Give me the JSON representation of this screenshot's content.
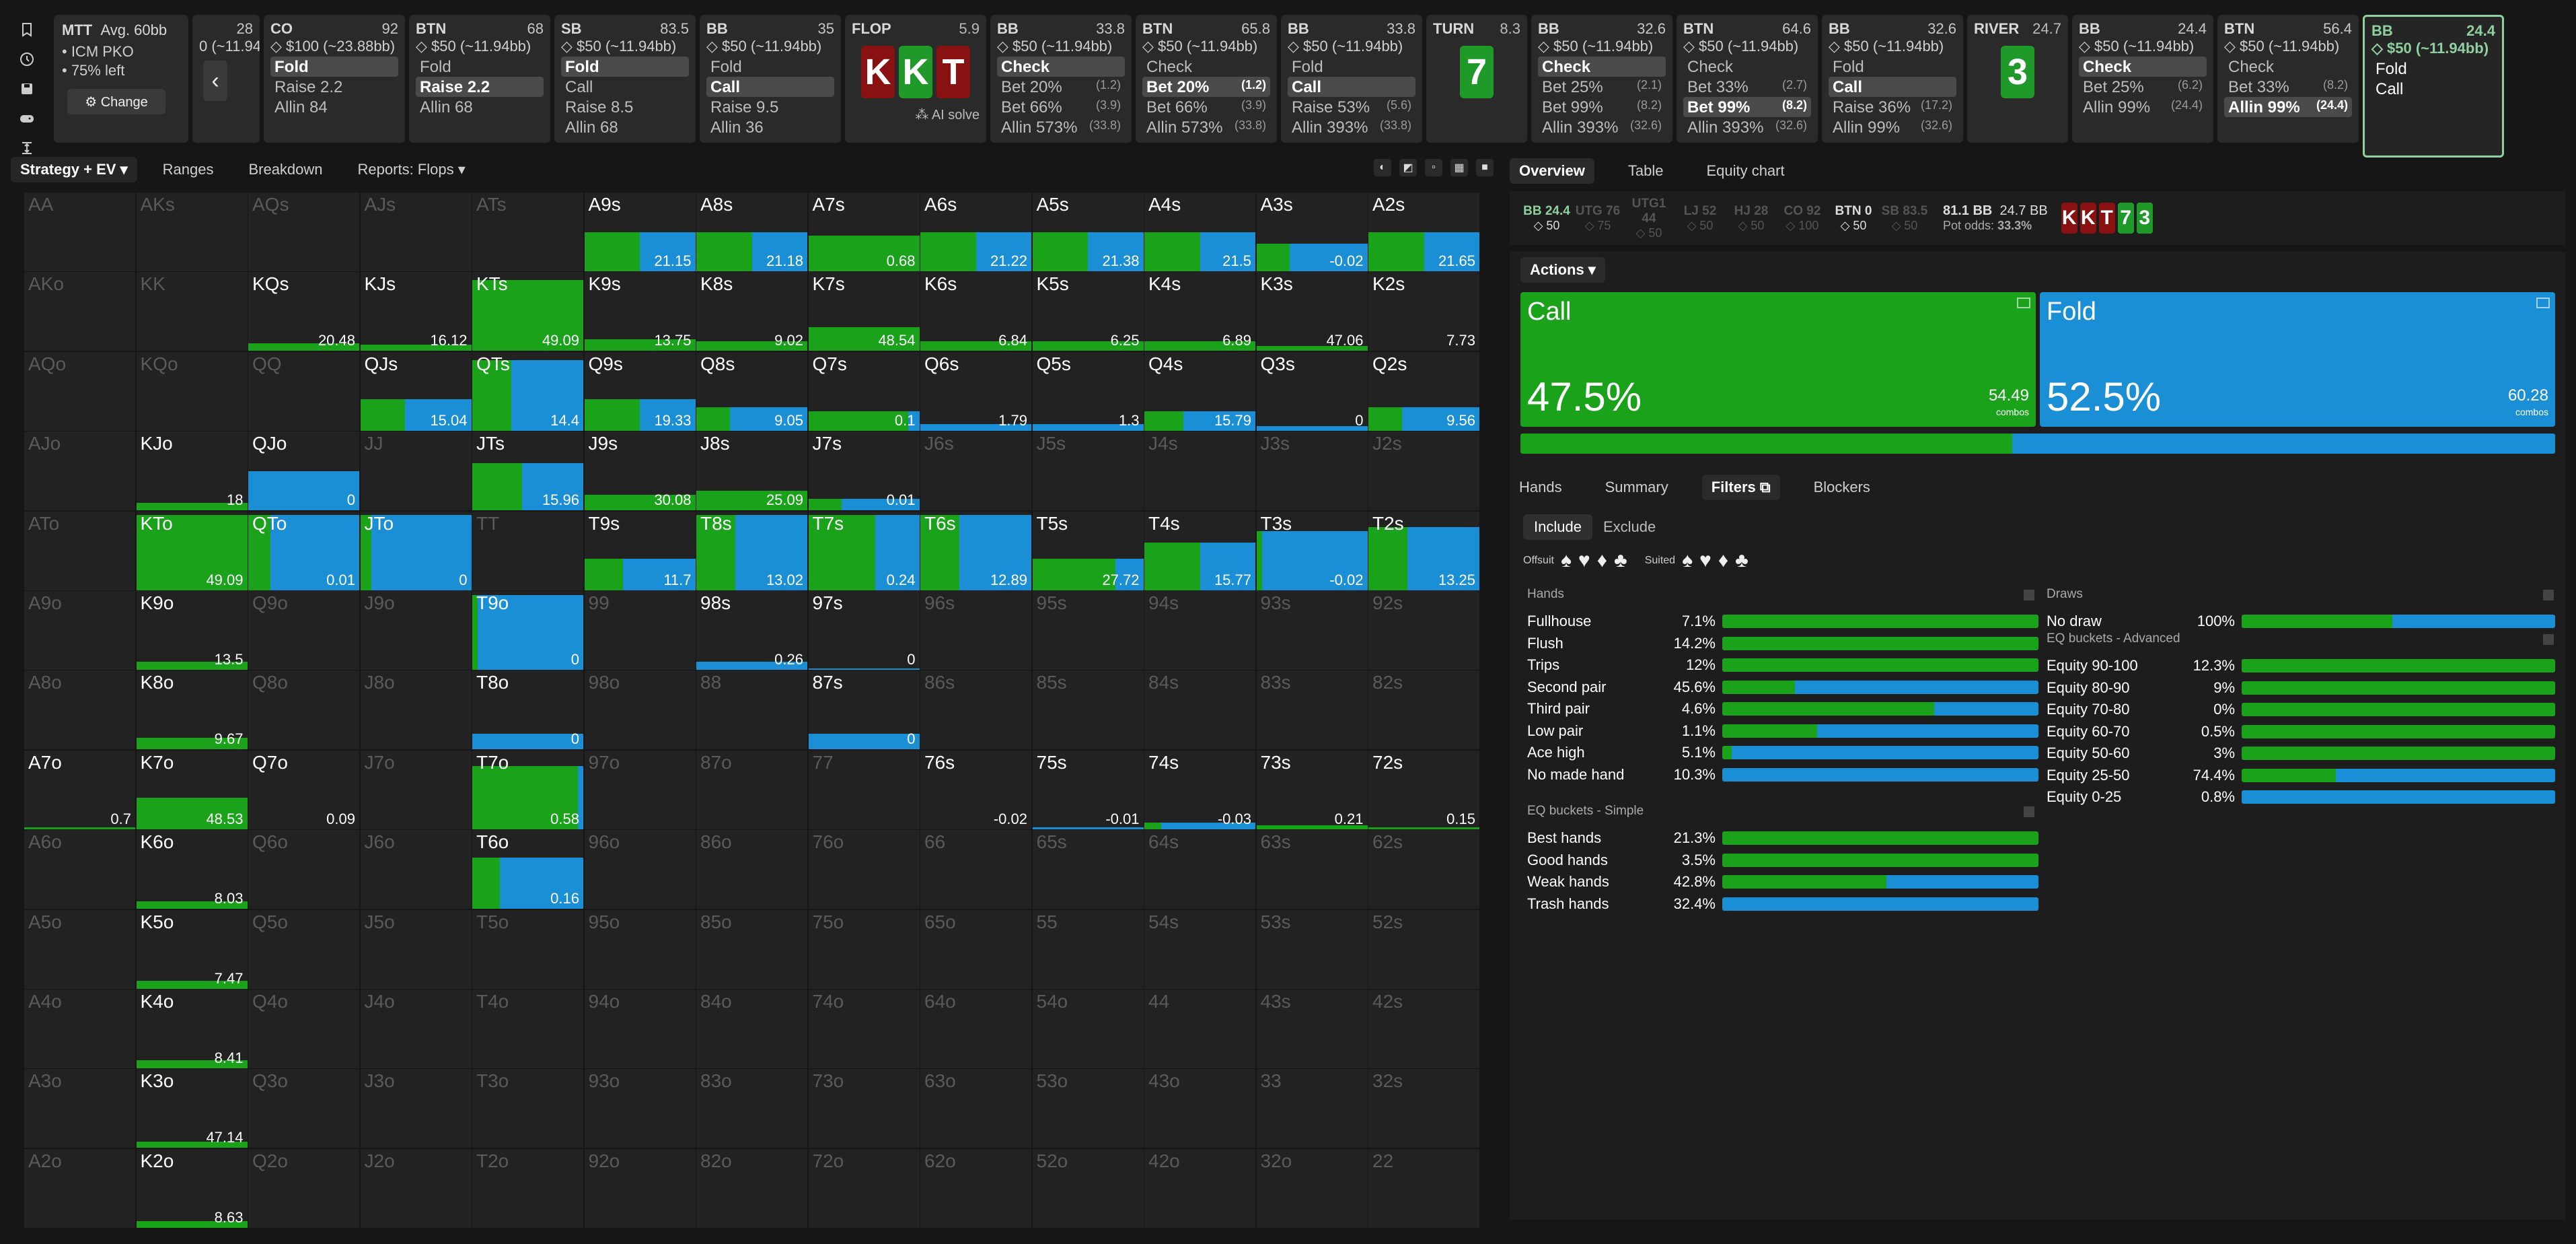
{
  "app": {
    "accent_green": "#1aa21a",
    "accent_blue": "#1b8fd6"
  },
  "rail_icons": [
    "bookmark-icon",
    "history-icon",
    "save-icon",
    "gamepad-icon",
    "compress-icon"
  ],
  "mtt": {
    "title": "MTT",
    "avg": "Avg. 60bb",
    "line1": "• ICM PKO",
    "line2": "• 75% left",
    "change": "⚙ Change"
  },
  "history": [
    {
      "pos": "",
      "num": "28",
      "stack": "0 (~11.94bb)",
      "actions": [
        {
          "l": "",
          "s": ""
        }
      ],
      "partial": true
    },
    {
      "pos": "CO",
      "num": "92",
      "stack": "◇ $100 (~23.88bb)",
      "actions": [
        {
          "l": "Fold",
          "s": "",
          "sel": true
        },
        {
          "l": "Raise 2.2",
          "s": ""
        },
        {
          "l": "Allin 84",
          "s": ""
        }
      ]
    },
    {
      "pos": "BTN",
      "num": "68",
      "stack": "◇ $50 (~11.94bb)",
      "actions": [
        {
          "l": "Fold",
          "s": ""
        },
        {
          "l": "Raise 2.2",
          "s": "",
          "sel": true
        },
        {
          "l": "Allin 68",
          "s": ""
        }
      ]
    },
    {
      "pos": "SB",
      "num": "83.5",
      "stack": "◇ $50 (~11.94bb)",
      "actions": [
        {
          "l": "Fold",
          "s": "",
          "sel": true
        },
        {
          "l": "Call",
          "s": ""
        },
        {
          "l": "Raise 8.5",
          "s": ""
        },
        {
          "l": "Allin 68",
          "s": ""
        }
      ]
    },
    {
      "pos": "BB",
      "num": "35",
      "stack": "◇ $50 (~11.94bb)",
      "actions": [
        {
          "l": "Fold",
          "s": ""
        },
        {
          "l": "Call",
          "s": "",
          "sel": true
        },
        {
          "l": "Raise 9.5",
          "s": ""
        },
        {
          "l": "Allin 36",
          "s": ""
        }
      ]
    },
    {
      "board": true,
      "street": "FLOP",
      "num": "5.9",
      "cards": [
        {
          "r": "K",
          "c": "red"
        },
        {
          "r": "K",
          "c": "green"
        },
        {
          "r": "T",
          "c": "red"
        }
      ],
      "ai": "⁂ AI solve"
    },
    {
      "pos": "BB",
      "num": "33.8",
      "stack": "◇ $50 (~11.94bb)",
      "actions": [
        {
          "l": "Check",
          "s": "",
          "sel": true
        },
        {
          "l": "Bet 20%",
          "s": "(1.2)"
        },
        {
          "l": "Bet 66%",
          "s": "(3.9)"
        },
        {
          "l": "Allin 573%",
          "s": "(33.8)"
        }
      ]
    },
    {
      "pos": "BTN",
      "num": "65.8",
      "stack": "◇ $50 (~11.94bb)",
      "actions": [
        {
          "l": "Check",
          "s": ""
        },
        {
          "l": "Bet 20%",
          "s": "(1.2)",
          "sel": true
        },
        {
          "l": "Bet 66%",
          "s": "(3.9)"
        },
        {
          "l": "Allin 573%",
          "s": "(33.8)"
        }
      ]
    },
    {
      "pos": "BB",
      "num": "33.8",
      "stack": "◇ $50 (~11.94bb)",
      "actions": [
        {
          "l": "Fold",
          "s": ""
        },
        {
          "l": "Call",
          "s": "",
          "sel": true
        },
        {
          "l": "Raise 53%",
          "s": "(5.6)"
        },
        {
          "l": "Allin 393%",
          "s": "(33.8)"
        }
      ]
    },
    {
      "board": true,
      "street": "TURN",
      "num": "8.3",
      "cards": [
        {
          "r": "7",
          "c": "green"
        }
      ]
    },
    {
      "pos": "BB",
      "num": "32.6",
      "stack": "◇ $50 (~11.94bb)",
      "actions": [
        {
          "l": "Check",
          "s": "",
          "sel": true
        },
        {
          "l": "Bet 25%",
          "s": "(2.1)"
        },
        {
          "l": "Bet 99%",
          "s": "(8.2)"
        },
        {
          "l": "Allin 393%",
          "s": "(32.6)"
        }
      ]
    },
    {
      "pos": "BTN",
      "num": "64.6",
      "stack": "◇ $50 (~11.94bb)",
      "actions": [
        {
          "l": "Check",
          "s": ""
        },
        {
          "l": "Bet 33%",
          "s": "(2.7)"
        },
        {
          "l": "Bet 99%",
          "s": "(8.2)",
          "sel": true
        },
        {
          "l": "Allin 393%",
          "s": "(32.6)"
        }
      ]
    },
    {
      "pos": "BB",
      "num": "32.6",
      "stack": "◇ $50 (~11.94bb)",
      "actions": [
        {
          "l": "Fold",
          "s": ""
        },
        {
          "l": "Call",
          "s": "",
          "sel": true
        },
        {
          "l": "Raise 36%",
          "s": "(17.2)"
        },
        {
          "l": "Allin 99%",
          "s": "(32.6)"
        }
      ]
    },
    {
      "board": true,
      "street": "RIVER",
      "num": "24.7",
      "cards": [
        {
          "r": "3",
          "c": "green"
        }
      ]
    },
    {
      "pos": "BB",
      "num": "24.4",
      "stack": "◇ $50 (~11.94bb)",
      "actions": [
        {
          "l": "Check",
          "s": "",
          "sel": true
        },
        {
          "l": "Bet 25%",
          "s": "(6.2)"
        },
        {
          "l": "Allin 99%",
          "s": "(24.4)"
        }
      ]
    },
    {
      "pos": "BTN",
      "num": "56.4",
      "stack": "◇ $50 (~11.94bb)",
      "actions": [
        {
          "l": "Check",
          "s": ""
        },
        {
          "l": "Bet 33%",
          "s": "(8.2)"
        },
        {
          "l": "Allin 99%",
          "s": "(24.4)",
          "sel": true
        }
      ]
    },
    {
      "pos": "BB",
      "num": "24.4",
      "stack": "◇ $50 (~11.94bb)",
      "active": true,
      "actions": [
        {
          "l": "Fold",
          "s": ""
        },
        {
          "l": "Call",
          "s": ""
        }
      ]
    }
  ],
  "toolbar": {
    "tabs": [
      "Strategy + EV ▾",
      "Ranges",
      "Breakdown",
      "Reports: Flops ▾"
    ]
  },
  "grid": {
    "ranks": [
      "A",
      "K",
      "Q",
      "J",
      "T",
      "9",
      "8",
      "7",
      "6",
      "5",
      "4",
      "3",
      "2"
    ],
    "cells": {
      "A9s": {
        "g": 0.5,
        "h": 0.5,
        "v": "21.15"
      },
      "A8s": {
        "g": 0.5,
        "h": 0.5,
        "v": "21.18"
      },
      "A7s": {
        "g": 1,
        "h": 0.45,
        "v": "0.68"
      },
      "A6s": {
        "g": 0.5,
        "h": 0.5,
        "v": "21.22"
      },
      "A5s": {
        "g": 0.5,
        "h": 0.5,
        "v": "21.38"
      },
      "A4s": {
        "g": 0.5,
        "h": 0.5,
        "v": "21.5"
      },
      "A3s": {
        "g": 0.3,
        "h": 0.35,
        "v": "-0.02"
      },
      "A2s": {
        "g": 0.5,
        "h": 0.5,
        "v": "21.65"
      },
      "KQs": {
        "g": 1,
        "h": 0.1,
        "v": "20.48"
      },
      "KJs": {
        "g": 1,
        "h": 0.08,
        "v": "16.12"
      },
      "KTs": {
        "g": 1,
        "h": 0.9,
        "v": "49.09"
      },
      "K9s": {
        "g": 1,
        "h": 0.15,
        "v": "13.75"
      },
      "K8s": {
        "g": 1,
        "h": 0.12,
        "v": "9.02"
      },
      "K7s": {
        "g": 1,
        "h": 0.3,
        "v": "48.54"
      },
      "K6s": {
        "g": 1,
        "h": 0.12,
        "v": "6.84"
      },
      "K5s": {
        "g": 1,
        "h": 0.12,
        "v": "6.25"
      },
      "K4s": {
        "g": 1,
        "h": 0.12,
        "v": "6.89"
      },
      "K3s": {
        "g": 1,
        "h": 0.06,
        "v": "47.06"
      },
      "K2s": {
        "g": 0,
        "h": 0,
        "v": "7.73"
      },
      "QJs": {
        "g": 0.4,
        "h": 0.4,
        "v": "15.04"
      },
      "QTs": {
        "g": 0.35,
        "h": 0.9,
        "v": "14.4"
      },
      "Q9s": {
        "g": 0.5,
        "h": 0.4,
        "v": "19.33"
      },
      "Q8s": {
        "g": 0.3,
        "h": 0.3,
        "v": "9.05"
      },
      "Q7s": {
        "g": 0.9,
        "h": 0.25,
        "v": "0.1"
      },
      "Q6s": {
        "g": 0,
        "h": 0.08,
        "v": "1.79"
      },
      "Q5s": {
        "g": 0,
        "h": 0.08,
        "v": "1.3"
      },
      "Q4s": {
        "g": 0.35,
        "h": 0.25,
        "v": "15.79"
      },
      "Q3s": {
        "g": 0,
        "h": 0.06,
        "v": "0"
      },
      "Q2s": {
        "g": 0.3,
        "h": 0.3,
        "v": "9.56"
      },
      "KJo": {
        "g": 1,
        "h": 0.1,
        "v": "18"
      },
      "QJo": {
        "g": 0,
        "h": 0.5,
        "v": "0"
      },
      "JTs": {
        "g": 0.45,
        "h": 0.6,
        "v": "15.96"
      },
      "J9s": {
        "g": 1,
        "h": 0.2,
        "v": "30.08"
      },
      "J8s": {
        "g": 1,
        "h": 0.25,
        "v": "25.09"
      },
      "J7s": {
        "g": 0.3,
        "h": 0.15,
        "v": "0.01"
      },
      "KTo": {
        "g": 1,
        "h": 0.95,
        "v": "49.09"
      },
      "QTo": {
        "g": 0.2,
        "h": 0.95,
        "v": "0.01"
      },
      "JTo": {
        "g": 0.1,
        "h": 0.95,
        "v": "0"
      },
      "T9s": {
        "g": 0.35,
        "h": 0.4,
        "v": "11.7"
      },
      "T8s": {
        "g": 0.35,
        "h": 0.95,
        "v": "13.02"
      },
      "T7s": {
        "g": 0.6,
        "h": 0.95,
        "v": "0.24"
      },
      "T6s": {
        "g": 0.35,
        "h": 0.95,
        "v": "12.89"
      },
      "T5s": {
        "g": 0.75,
        "h": 0.4,
        "v": "27.72"
      },
      "T4s": {
        "g": 0.5,
        "h": 0.6,
        "v": "15.77"
      },
      "T3s": {
        "g": 0.05,
        "h": 0.75,
        "v": "-0.02"
      },
      "T2s": {
        "g": 0.35,
        "h": 0.8,
        "v": "13.25"
      },
      "K9o": {
        "g": 1,
        "h": 0.1,
        "v": "13.5"
      },
      "T9o": {
        "g": 0.05,
        "h": 0.95,
        "v": "0"
      },
      "98s": {
        "g": 0,
        "h": 0.1,
        "v": "0.26"
      },
      "97s": {
        "g": 0,
        "h": 0.02,
        "v": "0"
      },
      "K8o": {
        "g": 1,
        "h": 0.15,
        "v": "9.67"
      },
      "T8o": {
        "g": 0,
        "h": 0.2,
        "v": "0"
      },
      "87s": {
        "g": 0,
        "h": 0.2,
        "v": "0"
      },
      "A7o": {
        "g": 1,
        "h": 0.02,
        "v": "0.7"
      },
      "K7o": {
        "g": 1,
        "h": 0.4,
        "v": "48.53"
      },
      "Q7o": {
        "g": 0,
        "h": 0,
        "v": "0.09"
      },
      "T7o": {
        "g": 0.95,
        "h": 0.8,
        "v": "0.58"
      },
      "76s": {
        "g": 0,
        "h": 0,
        "v": "-0.02"
      },
      "75s": {
        "g": 0,
        "h": 0.02,
        "v": "-0.01"
      },
      "74s": {
        "g": 0.15,
        "h": 0.08,
        "v": "-0.03"
      },
      "73s": {
        "g": 1,
        "h": 0.05,
        "v": "0.21"
      },
      "72s": {
        "g": 1,
        "h": 0.02,
        "v": "0.15"
      },
      "K6o": {
        "g": 1,
        "h": 0.1,
        "v": "8.03"
      },
      "T6o": {
        "g": 0.25,
        "h": 0.65,
        "v": "0.16"
      },
      "K5o": {
        "g": 1,
        "h": 0.1,
        "v": "7.47"
      },
      "K4o": {
        "g": 1,
        "h": 0.1,
        "v": "8.41"
      },
      "K3o": {
        "g": 1,
        "h": 0.08,
        "v": "47.14"
      },
      "K2o": {
        "g": 1,
        "h": 0.08,
        "v": "8.63"
      }
    },
    "bright": [
      "A9s",
      "A8s",
      "A7s",
      "A6s",
      "A5s",
      "A4s",
      "A3s",
      "A2s",
      "KQs",
      "KJs",
      "KTs",
      "K9s",
      "K8s",
      "K7s",
      "K6s",
      "K5s",
      "K4s",
      "K3s",
      "K2s",
      "QJs",
      "QTs",
      "Q9s",
      "Q8s",
      "Q7s",
      "Q6s",
      "Q5s",
      "Q4s",
      "Q3s",
      "Q2s",
      "KJo",
      "QJo",
      "JTs",
      "J9s",
      "J8s",
      "J7s",
      "KTo",
      "QTo",
      "JTo",
      "T9s",
      "T8s",
      "T7s",
      "T6s",
      "T5s",
      "T4s",
      "T3s",
      "T2s",
      "K9o",
      "T9o",
      "98s",
      "97s",
      "K8o",
      "T8o",
      "87s",
      "A7o",
      "K7o",
      "Q7o",
      "T7o",
      "76s",
      "75s",
      "74s",
      "73s",
      "72s",
      "K6o",
      "T6o",
      "K5o",
      "K4o",
      "K3o",
      "K2o"
    ]
  },
  "right": {
    "tabs": [
      "Overview",
      "Table",
      "Equity chart"
    ],
    "seats": [
      {
        "n": "BB 24.4",
        "s": "◇ 50",
        "hl": true
      },
      {
        "n": "UTG 76",
        "s": "◇ 75",
        "dim": true
      },
      {
        "n": "UTG1 44",
        "s": "◇ 50",
        "dim": true
      },
      {
        "n": "LJ 52",
        "s": "◇ 50",
        "dim": true
      },
      {
        "n": "HJ 28",
        "s": "◇ 50",
        "dim": true
      },
      {
        "n": "CO 92",
        "s": "◇ 100",
        "dim": true
      },
      {
        "n": "BTN 0",
        "s": "◇ 50"
      },
      {
        "n": "SB 83.5",
        "s": "◇ 50",
        "dim": true
      }
    ],
    "pot": {
      "a": "81.1 BB",
      "b": "24.7 BB",
      "odds_label": "Pot odds:",
      "odds": "33.3%"
    },
    "board": [
      {
        "r": "K",
        "c": "red"
      },
      {
        "r": "K",
        "c": "red"
      },
      {
        "r": "T",
        "c": "red"
      },
      {
        "r": "7",
        "c": "green"
      },
      {
        "r": "3",
        "c": "green"
      }
    ],
    "actions_label": "Actions ▾",
    "call": {
      "name": "Call",
      "pct": "47.5%",
      "combos": "54.49",
      "combos_label": "combos",
      "frac": 0.475
    },
    "fold": {
      "name": "Fold",
      "pct": "52.5%",
      "combos": "60.28",
      "combos_label": "combos"
    },
    "ftabs": [
      "Hands",
      "Summary",
      "Filters ⧉",
      "Blockers"
    ],
    "incl": [
      "Include",
      "Exclude"
    ],
    "suit_labels": {
      "off": "Offsuit",
      "suited": "Suited"
    },
    "hands_title": "Hands",
    "hands": [
      {
        "n": "Fullhouse",
        "p": "7.1%",
        "g": 1
      },
      {
        "n": "Flush",
        "p": "14.2%",
        "g": 1
      },
      {
        "n": "Trips",
        "p": "12%",
        "g": 1
      },
      {
        "n": "Second pair",
        "p": "45.6%",
        "g": 0.23
      },
      {
        "n": "Third pair",
        "p": "4.6%",
        "g": 0.67
      },
      {
        "n": "Low pair",
        "p": "1.1%",
        "g": 0.3
      },
      {
        "n": "Ace high",
        "p": "5.1%",
        "g": 0.03
      },
      {
        "n": "No made hand",
        "p": "10.3%",
        "g": 0
      }
    ],
    "eqs_title": "EQ buckets - Simple",
    "eqs": [
      {
        "n": "Best hands",
        "p": "21.3%",
        "g": 1
      },
      {
        "n": "Good hands",
        "p": "3.5%",
        "g": 1
      },
      {
        "n": "Weak hands",
        "p": "42.8%",
        "g": 0.52
      },
      {
        "n": "Trash hands",
        "p": "32.4%",
        "g": 0
      }
    ],
    "draws_title": "Draws",
    "draws": [
      {
        "n": "No draw",
        "p": "100%",
        "g": 0.48
      }
    ],
    "eqa_title": "EQ buckets - Advanced",
    "eqa": [
      {
        "n": "Equity 90-100",
        "p": "12.3%",
        "g": 1
      },
      {
        "n": "Equity 80-90",
        "p": "9%",
        "g": 1
      },
      {
        "n": "Equity 70-80",
        "p": "0%",
        "g": 1
      },
      {
        "n": "Equity 60-70",
        "p": "0.5%",
        "g": 1
      },
      {
        "n": "Equity 50-60",
        "p": "3%",
        "g": 1
      },
      {
        "n": "Equity 25-50",
        "p": "74.4%",
        "g": 0.3
      },
      {
        "n": "Equity 0-25",
        "p": "0.8%",
        "g": 0
      }
    ]
  }
}
